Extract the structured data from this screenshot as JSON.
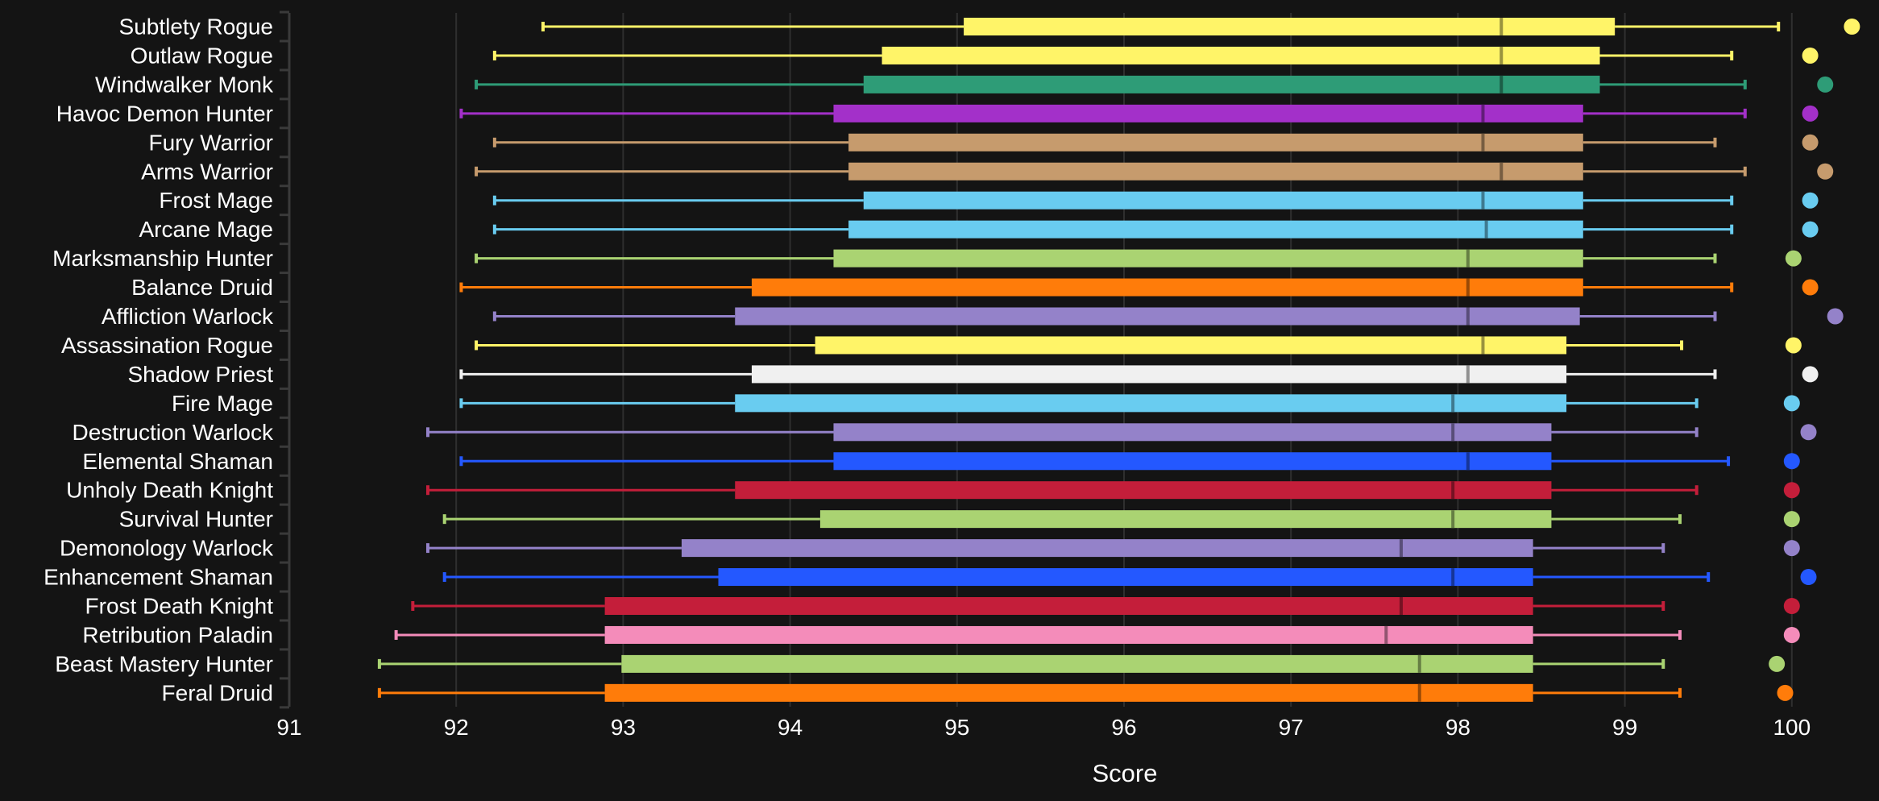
{
  "chart_data": {
    "type": "boxplot",
    "title": "",
    "xlabel": "Score",
    "ylabel": "",
    "xlim": [
      91,
      100
    ],
    "xticks": [
      "91",
      "92",
      "93",
      "94",
      "95",
      "96",
      "97",
      "98",
      "99",
      "100"
    ],
    "grid": true,
    "legend": "none",
    "categories": [
      "Subtlety Rogue",
      "Outlaw Rogue",
      "Windwalker Monk",
      "Havoc Demon Hunter",
      "Fury Warrior",
      "Arms Warrior",
      "Frost Mage",
      "Arcane Mage",
      "Marksmanship Hunter",
      "Balance Druid",
      "Affliction Warlock",
      "Assassination Rogue",
      "Shadow Priest",
      "Fire Mage",
      "Destruction Warlock",
      "Elemental Shaman",
      "Unholy Death Knight",
      "Survival Hunter",
      "Demonology Warlock",
      "Enhancement Shaman",
      "Frost Death Knight",
      "Retribution Paladin",
      "Beast Mastery Hunter",
      "Feral Druid"
    ],
    "colors": [
      "#FFF468",
      "#FFF468",
      "#2E9C77",
      "#A330C9",
      "#C69B6D",
      "#C69B6D",
      "#69CCF0",
      "#69CCF0",
      "#AAD372",
      "#FF7C0A",
      "#9482C9",
      "#FFF468",
      "#F0F0F0",
      "#69CCF0",
      "#9482C9",
      "#2458FF",
      "#C41E3A",
      "#AAD372",
      "#9482C9",
      "#2458FF",
      "#C41E3A",
      "#F48CBA",
      "#AAD372",
      "#FF7C0A"
    ],
    "min": [
      92.52,
      92.23,
      92.12,
      92.03,
      92.23,
      92.12,
      92.23,
      92.23,
      92.12,
      92.03,
      92.23,
      92.12,
      92.03,
      92.03,
      91.83,
      92.03,
      91.83,
      91.93,
      91.83,
      91.93,
      91.74,
      91.64,
      91.54,
      91.54
    ],
    "q1": [
      95.04,
      94.55,
      94.44,
      94.26,
      94.35,
      94.35,
      94.44,
      94.35,
      94.26,
      93.77,
      93.67,
      94.15,
      93.77,
      93.67,
      94.26,
      94.26,
      93.67,
      94.18,
      93.35,
      93.57,
      92.89,
      92.89,
      92.99,
      92.89
    ],
    "median": [
      98.26,
      98.26,
      98.26,
      98.15,
      98.15,
      98.26,
      98.15,
      98.17,
      98.06,
      98.06,
      98.06,
      98.15,
      98.06,
      97.97,
      97.97,
      98.06,
      97.97,
      97.97,
      97.66,
      97.97,
      97.66,
      97.57,
      97.77,
      97.77
    ],
    "q3": [
      98.94,
      98.85,
      98.85,
      98.75,
      98.75,
      98.75,
      98.75,
      98.75,
      98.75,
      98.75,
      98.73,
      98.65,
      98.65,
      98.65,
      98.56,
      98.56,
      98.56,
      98.56,
      98.45,
      98.45,
      98.45,
      98.45,
      98.45,
      98.45
    ],
    "max": [
      99.92,
      99.64,
      99.72,
      99.72,
      99.54,
      99.72,
      99.64,
      99.64,
      99.54,
      99.64,
      99.54,
      99.34,
      99.54,
      99.43,
      99.43,
      99.62,
      99.43,
      99.33,
      99.23,
      99.5,
      99.23,
      99.33,
      99.23,
      99.33
    ],
    "points": [
      100.36,
      100.11,
      100.2,
      100.11,
      100.11,
      100.2,
      100.11,
      100.11,
      100.01,
      100.11,
      100.26,
      100.01,
      100.11,
      100.0,
      100.1,
      100.0,
      100.0,
      100.0,
      100.0,
      100.1,
      100.0,
      100.0,
      99.91,
      99.96
    ]
  }
}
